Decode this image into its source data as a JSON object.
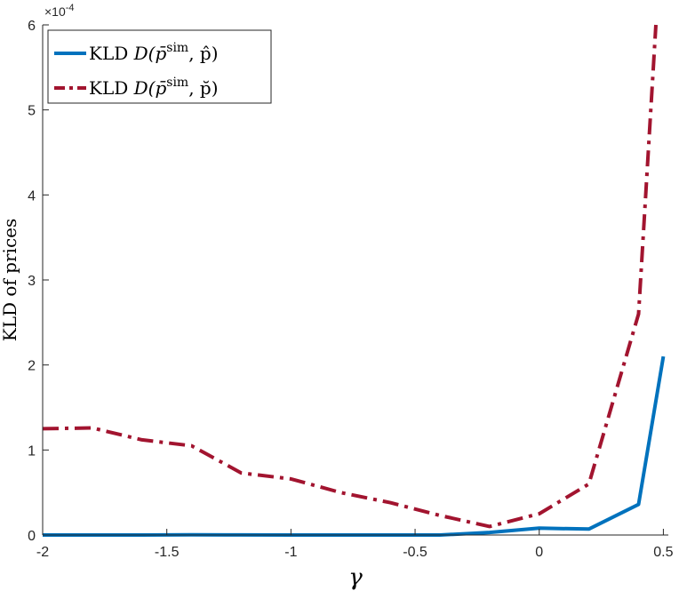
{
  "chart_data": {
    "type": "line",
    "xlabel": "γ",
    "ylabel": "KLD of prices",
    "xlim": [
      -2,
      0.52
    ],
    "ylim": [
      0,
      0.0006
    ],
    "grid": false,
    "legend_position": "top-left",
    "y_exponent_label": "×10",
    "y_exponent_power": "-4",
    "x_ticks": [
      {
        "value": -2,
        "label": "-2"
      },
      {
        "value": -1.5,
        "label": "-1.5"
      },
      {
        "value": -1,
        "label": "-1"
      },
      {
        "value": -0.5,
        "label": "-0.5"
      },
      {
        "value": 0,
        "label": "0"
      },
      {
        "value": 0.5,
        "label": "0.5"
      }
    ],
    "y_ticks": [
      {
        "value": 0,
        "label": "0"
      },
      {
        "value": 0.0001,
        "label": "1"
      },
      {
        "value": 0.0002,
        "label": "2"
      },
      {
        "value": 0.0003,
        "label": "3"
      },
      {
        "value": 0.0004,
        "label": "4"
      },
      {
        "value": 0.0005,
        "label": "5"
      },
      {
        "value": 0.0006,
        "label": "6"
      }
    ],
    "series": [
      {
        "name": "KLD D(p̄sim, p̂)",
        "legend_prefix": "KLD",
        "legend_math": "D(p̄",
        "legend_sup": "sim",
        "legend_math_end": ", p̂)",
        "color": "#0072BD",
        "style": "solid",
        "points": [
          [
            -2.0,
            0.0
          ],
          [
            -1.8,
            0.0
          ],
          [
            -1.6,
            0.0
          ],
          [
            -1.4,
            2e-07
          ],
          [
            -1.2,
            1e-07
          ],
          [
            -1.0,
            0.0
          ],
          [
            -0.8,
            0.0
          ],
          [
            -0.6,
            0.0
          ],
          [
            -0.4,
            0.0
          ],
          [
            -0.2,
            3e-06
          ],
          [
            0.0,
            8e-06
          ],
          [
            0.2,
            7e-06
          ],
          [
            0.4,
            3.6e-05
          ],
          [
            0.5,
            0.00021
          ]
        ]
      },
      {
        "name": "KLD D(p̄sim, p̆)",
        "legend_prefix": "KLD",
        "legend_math": "D(p̄",
        "legend_sup": "sim",
        "legend_math_end": ", p̆)",
        "color": "#A2142F",
        "style": "dashdot",
        "points": [
          [
            -2.0,
            0.000125
          ],
          [
            -1.8,
            0.000126
          ],
          [
            -1.6,
            0.000112
          ],
          [
            -1.4,
            0.000105
          ],
          [
            -1.2,
            7.3e-05
          ],
          [
            -1.0,
            6.6e-05
          ],
          [
            -0.8,
            5e-05
          ],
          [
            -0.6,
            3.8e-05
          ],
          [
            -0.4,
            2.3e-05
          ],
          [
            -0.2,
            1e-05
          ],
          [
            0.0,
            2.5e-05
          ],
          [
            0.2,
            6e-05
          ],
          [
            0.4,
            0.00026
          ],
          [
            0.47,
            0.0006
          ]
        ]
      }
    ]
  }
}
